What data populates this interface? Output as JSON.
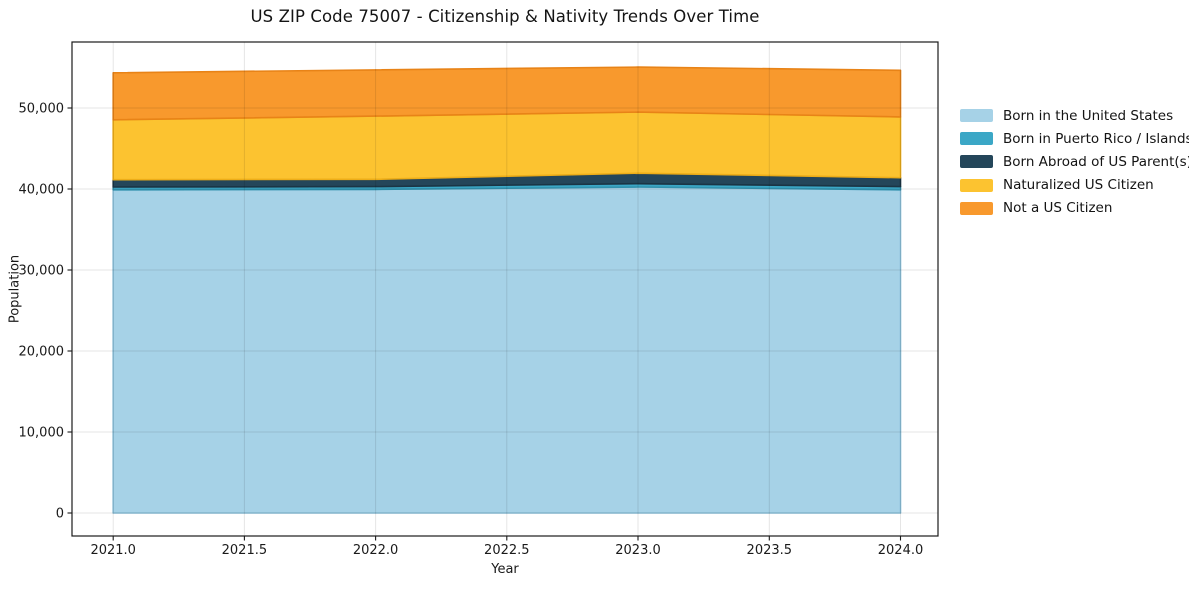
{
  "chart_data": {
    "type": "area",
    "stacked": true,
    "title": "US ZIP Code 75007 - Citizenship & Nativity Trends Over Time",
    "xlabel": "Year",
    "ylabel": "Population",
    "x": [
      2021,
      2022,
      2023,
      2024
    ],
    "series": [
      {
        "name": "Born in the United States",
        "color": "#a6d2e7",
        "edge": "#8cc1db",
        "values": [
          39900,
          39950,
          40250,
          39900
        ]
      },
      {
        "name": "Born in Puerto Rico / Islands",
        "color": "#3ba7c6",
        "edge": "#3292ae",
        "values": [
          350,
          350,
          400,
          400
        ]
      },
      {
        "name": "Born Abroad of US Parent(s)",
        "color": "#24465a",
        "edge": "#1b3545",
        "values": [
          900,
          900,
          1300,
          1100
        ]
      },
      {
        "name": "Naturalized US Citizen",
        "color": "#fcc330",
        "edge": "#edad18",
        "values": [
          7400,
          7800,
          7550,
          7500
        ]
      },
      {
        "name": "Not a US Citizen",
        "color": "#f8992d",
        "edge": "#e88317",
        "values": [
          5800,
          5700,
          5550,
          5750
        ]
      }
    ],
    "x_ticks": [
      "2021.0",
      "2021.5",
      "2022.0",
      "2022.5",
      "2023.0",
      "2023.5",
      "2024.0"
    ],
    "y_ticks": [
      "0",
      "10,000",
      "20,000",
      "30,000",
      "40,000",
      "50,000"
    ],
    "xlim": [
      2020.843,
      2024.143
    ],
    "ylim": [
      -2840,
      58150
    ],
    "grid": true,
    "grid_color": "rgba(0,0,0,0.10)",
    "spine_color": "#1a1a1a",
    "tick_label_color": "#1a1a1a",
    "legend_position": "right-outside"
  }
}
